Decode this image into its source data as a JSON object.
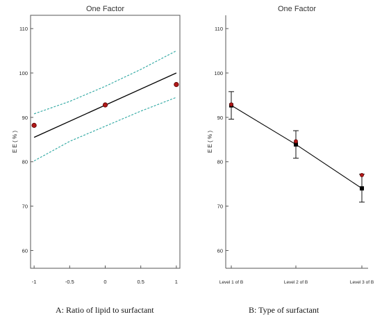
{
  "chart_data": [
    {
      "type": "line",
      "panel": "A",
      "title": "One Factor",
      "ylabel": "E E ( % )",
      "xlabel": "",
      "caption": "A: Ratio of lipid to surfactant",
      "xlim": [
        -1.05,
        1.05
      ],
      "ylim": [
        56,
        113
      ],
      "xticks": [
        "-1",
        "-0.5",
        "0",
        "0.5",
        "1"
      ],
      "xtick_values": [
        -1,
        -0.5,
        0,
        0.5,
        1
      ],
      "yticks": [
        60,
        70,
        80,
        90,
        100,
        110
      ],
      "grid": false,
      "series": [
        {
          "role": "fit",
          "x": [
            -1,
            1
          ],
          "y": [
            85.5,
            100
          ],
          "color": "#000000"
        },
        {
          "role": "upper-ci",
          "x": [
            -1,
            -0.5,
            0,
            0.5,
            1
          ],
          "y": [
            90.8,
            93.6,
            97.0,
            100.8,
            105.0
          ],
          "color": "#2aa6a0"
        },
        {
          "role": "lower-ci",
          "x": [
            -1,
            -0.5,
            0,
            0.5,
            1
          ],
          "y": [
            80.2,
            84.6,
            88.0,
            91.4,
            94.5
          ],
          "color": "#2aa6a0"
        },
        {
          "role": "observed",
          "x": [
            -1,
            0,
            1
          ],
          "y": [
            88.2,
            92.8,
            97.4
          ],
          "color": "#b01818"
        }
      ]
    },
    {
      "type": "line",
      "panel": "B",
      "title": "One Factor",
      "ylabel": "E E ( % )",
      "xlabel": "",
      "caption": "B: Type of surfactant",
      "categories": [
        "Level 1 of B",
        "Level 2 of B",
        "Level 3 of B"
      ],
      "ylim": [
        56,
        113
      ],
      "yticks": [
        60,
        70,
        80,
        90,
        100,
        110
      ],
      "grid": false,
      "series": [
        {
          "role": "predicted",
          "values": [
            92.7,
            83.9,
            74.0
          ],
          "color": "#000000"
        },
        {
          "role": "ci-upper",
          "values": [
            95.8,
            87.0,
            77.2
          ]
        },
        {
          "role": "ci-lower",
          "values": [
            89.6,
            80.8,
            70.9
          ]
        },
        {
          "role": "observed",
          "values": [
            92.9,
            84.6,
            77.0
          ],
          "color": "#b01818"
        }
      ]
    }
  ]
}
